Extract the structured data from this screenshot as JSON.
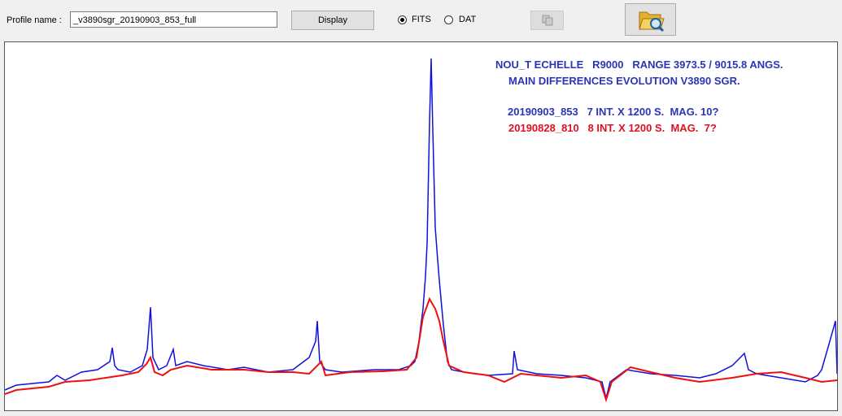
{
  "toolbar": {
    "profile_label": "Profile name :",
    "profile_value": "_v3890sgr_20190903_853_full",
    "display_button": "Display",
    "fits_option": "FITS",
    "dat_option": "DAT"
  },
  "plot": {
    "annotations": [
      "NOU_T ECHELLE   R9000   RANGE 3973.5 / 9015.8 ANGS.",
      "MAIN DIFFERENCES EVOLUTION V3890 SGR.",
      "20190903_853   7 INT. X 1200 S.  MAG. 10?",
      "20190828_810   8 INT. X 1200 S.  MAG.  7?"
    ]
  }
}
